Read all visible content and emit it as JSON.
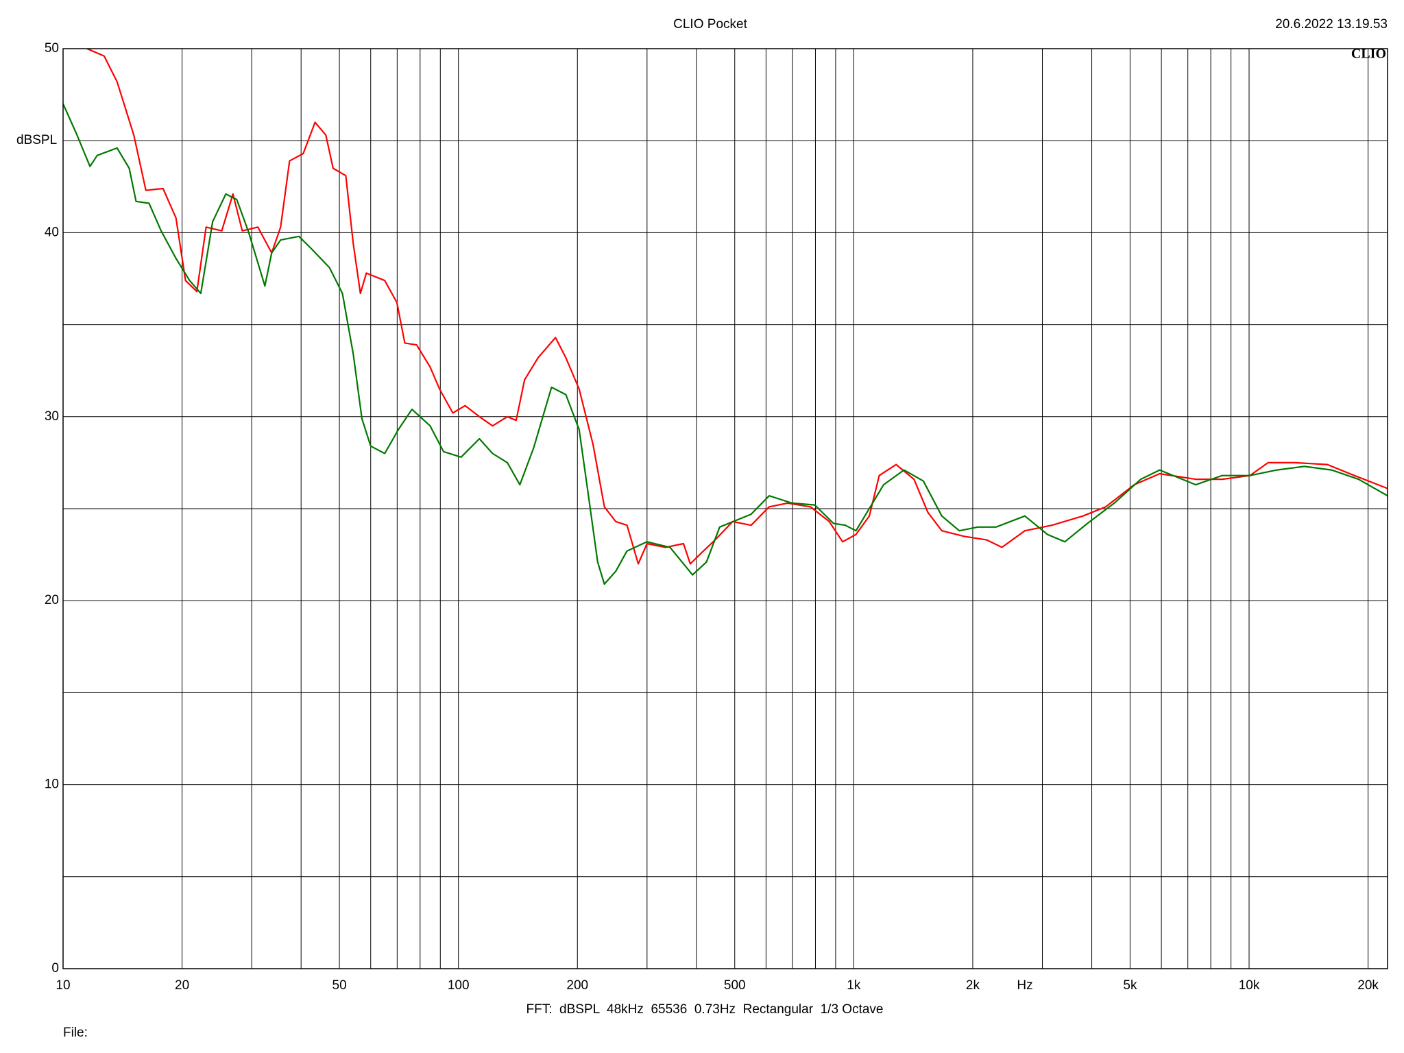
{
  "chart_data": {
    "type": "line",
    "title": "CLIO Pocket",
    "timestamp": "20.6.2022 13.19.53",
    "logo": "CLIO",
    "y_label": "dBSPL",
    "x_unit": "Hz",
    "footer": "FFT:  dBSPL  48kHz  65536  0.73Hz  Rectangular  1/3 Octave",
    "file_label": "File:",
    "x_log": true,
    "grid": true,
    "xlim": [
      10,
      22400
    ],
    "ylim": [
      0,
      50
    ],
    "xticks": [
      10,
      20,
      50,
      100,
      200,
      500,
      {
        "value": 1000,
        "label": "1k"
      },
      {
        "value": 2000,
        "label": "2k"
      },
      {
        "value": 5000,
        "label": "5k"
      },
      {
        "value": 10000,
        "label": "10k"
      },
      {
        "value": 20000,
        "label": "20k"
      }
    ],
    "xminor": [
      30,
      40,
      60,
      70,
      80,
      90,
      300,
      400,
      600,
      700,
      800,
      900,
      3000,
      4000,
      6000,
      7000,
      8000,
      9000
    ],
    "yticks": [
      0,
      10,
      20,
      30,
      40,
      50
    ],
    "yminor": [
      5,
      15,
      25,
      35,
      45
    ],
    "series": [
      {
        "color": "#ff0000",
        "x": [
          11.5,
          12.7,
          13.7,
          15.1,
          16.2,
          17.9,
          19.3,
          20.4,
          21.8,
          23,
          25.2,
          26.9,
          28.4,
          31.1,
          33.7,
          35.5,
          37.4,
          40.5,
          43.4,
          46.2,
          48.2,
          51.9,
          54.2,
          56.5,
          58.5,
          65.1,
          69.9,
          73.2,
          78.4,
          84.8,
          89.6,
          96.8,
          104,
          113,
          122,
          133,
          140,
          147,
          159,
          176,
          187,
          202,
          219,
          234,
          250,
          267,
          285,
          300,
          334,
          371,
          386,
          412,
          446,
          494,
          550,
          611,
          680,
          777,
          867,
          937,
          1013,
          1095,
          1160,
          1280,
          1420,
          1540,
          1670,
          1900,
          2170,
          2370,
          2710,
          3170,
          3800,
          4340,
          5120,
          5940,
          7330,
          8550,
          10050,
          11170,
          13100,
          15770,
          18470,
          22400
        ],
        "values": [
          50,
          49.6,
          48.2,
          45.3,
          42.3,
          42.4,
          40.8,
          37.4,
          36.8,
          40.3,
          40.1,
          42.1,
          40.1,
          40.3,
          38.9,
          40.3,
          43.9,
          44.3,
          46,
          45.3,
          43.5,
          43.1,
          39.4,
          36.7,
          37.8,
          37.4,
          36.2,
          34,
          33.9,
          32.7,
          31.5,
          30.2,
          30.6,
          30,
          29.5,
          30,
          29.8,
          32,
          33.2,
          34.3,
          33.2,
          31.5,
          28.5,
          25.1,
          24.3,
          24.1,
          22,
          23.1,
          22.9,
          23.1,
          22,
          22.6,
          23.3,
          24.3,
          24.1,
          25.1,
          25.3,
          25.1,
          24.3,
          23.2,
          23.6,
          24.6,
          26.8,
          27.4,
          26.6,
          24.8,
          23.8,
          23.5,
          23.3,
          22.9,
          23.8,
          24.1,
          24.6,
          25.1,
          26.3,
          26.9,
          26.6,
          26.6,
          26.8,
          27.5,
          27.5,
          27.4,
          26.8,
          26.1
        ]
      },
      {
        "color": "#007800",
        "x": [
          10,
          10.8,
          11.7,
          12.2,
          13.7,
          14.7,
          15.3,
          16.5,
          17.7,
          19.3,
          20.9,
          22.3,
          23.9,
          25.8,
          27.5,
          29.5,
          32.4,
          33.7,
          35.5,
          39.5,
          42.6,
          47.2,
          50.9,
          54.2,
          57,
          60,
          65.1,
          70.5,
          76.3,
          84.8,
          91.7,
          101.6,
          113,
          122,
          133,
          143,
          155,
          172,
          187,
          202,
          213,
          225,
          234,
          250,
          267,
          300,
          343,
          391,
          424,
          458,
          550,
          611,
          698,
          797,
          889,
          952,
          1013,
          1190,
          1340,
          1500,
          1670,
          1850,
          2060,
          2290,
          2710,
          3090,
          3420,
          3900,
          4560,
          5320,
          5940,
          7330,
          8550,
          10050,
          11750,
          13800,
          16170,
          18910,
          22400
        ],
        "values": [
          47,
          45.4,
          43.6,
          44.2,
          44.6,
          43.5,
          41.7,
          41.6,
          40.1,
          38.6,
          37.4,
          36.7,
          40.6,
          42.1,
          41.8,
          40,
          37.1,
          38.9,
          39.6,
          39.8,
          39.1,
          38.1,
          36.7,
          33.4,
          29.9,
          28.4,
          28,
          29.3,
          30.4,
          29.5,
          28.1,
          27.8,
          28.8,
          28,
          27.5,
          26.3,
          28.3,
          31.6,
          31.2,
          29.3,
          25.8,
          22.1,
          20.9,
          21.6,
          22.7,
          23.2,
          22.9,
          21.4,
          22.1,
          24,
          24.7,
          25.7,
          25.3,
          25.2,
          24.2,
          24.1,
          23.8,
          26.3,
          27.1,
          26.5,
          24.6,
          23.8,
          24,
          24,
          24.6,
          23.6,
          23.2,
          24.2,
          25.3,
          26.6,
          27.1,
          26.3,
          26.8,
          26.8,
          27.1,
          27.3,
          27.1,
          26.6,
          25.7
        ]
      }
    ]
  }
}
